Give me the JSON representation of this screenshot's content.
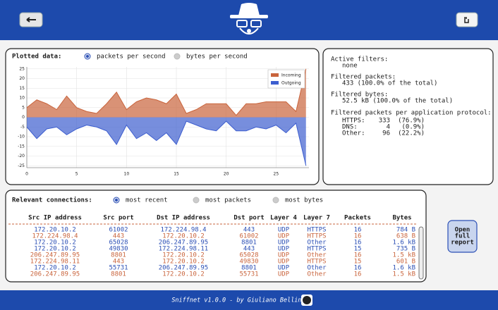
{
  "plot_panel": {
    "title": "Plotted data:",
    "options": [
      "packets per second",
      "bytes per second"
    ],
    "selected": 0,
    "chart_data": {
      "type": "area",
      "x": [
        0,
        1,
        2,
        3,
        4,
        5,
        6,
        7,
        8,
        9,
        10,
        11,
        12,
        13,
        14,
        15,
        16,
        17,
        18,
        19,
        20,
        21,
        22,
        23,
        24,
        25,
        26,
        27,
        28
      ],
      "series": [
        {
          "name": "Incoming",
          "color": "#c9643c",
          "values": [
            5,
            9,
            7,
            4,
            11,
            5,
            3,
            2,
            7,
            13,
            4,
            8,
            10,
            9,
            7,
            12,
            2,
            4,
            7,
            7,
            7,
            1,
            7,
            7,
            8,
            8,
            8,
            3,
            25
          ]
        },
        {
          "name": "Outgoing",
          "color": "#3d5ecf",
          "values": [
            -5,
            -11,
            -6,
            -5,
            -9,
            -6,
            -4,
            -5,
            -7,
            -14,
            -4,
            -11,
            -8,
            -12,
            -8,
            -14,
            -2,
            -4,
            -6,
            -7,
            -2,
            -7,
            -7,
            -5,
            -6,
            -4,
            -8,
            -3,
            -25
          ]
        }
      ],
      "xlim": [
        0,
        28.3
      ],
      "ylim": [
        -26,
        26
      ],
      "xticks": [
        0,
        5,
        10,
        15,
        20,
        25
      ],
      "yticks": [
        -25,
        -20,
        -15,
        -10,
        -5,
        0,
        5,
        10,
        15,
        20,
        25
      ],
      "grid": true,
      "legend": "top-right"
    }
  },
  "info_panel": {
    "active_filters_label": "Active filters:",
    "active_filters": "none",
    "packets_label": "Filtered packets:",
    "packets": "433 (100.0% of the total)",
    "bytes_label": "Filtered bytes:",
    "bytes": "52.5 kB (100.0% of the total)",
    "protocols_label": "Filtered packets per application protocol:",
    "protocols": [
      {
        "name": "HTTPS:",
        "count": 333,
        "percent": "(76.9%)"
      },
      {
        "name": "DNS:",
        "count": 4,
        "percent": "(0.9%)"
      },
      {
        "name": "Other:",
        "count": 96,
        "percent": "(22.2%)"
      }
    ]
  },
  "connections": {
    "title": "Relevant connections:",
    "options": [
      "most recent",
      "most packets",
      "most bytes"
    ],
    "selected": 0,
    "columns": [
      "Src IP address",
      "Src port",
      "Dst IP address",
      "Dst port",
      "Layer 4",
      "Layer 7",
      "Packets",
      "Bytes"
    ],
    "rows": [
      [
        "172.20.10.2",
        61002,
        "172.224.98.4",
        443,
        "UDP",
        "HTTPS",
        16,
        "784 B"
      ],
      [
        "172.224.98.4",
        443,
        "172.20.10.2",
        61002,
        "UDP",
        "HTTPS",
        16,
        "638 B"
      ],
      [
        "172.20.10.2",
        65028,
        "206.247.89.95",
        8801,
        "UDP",
        "Other",
        16,
        "1.6 kB"
      ],
      [
        "172.20.10.2",
        49830,
        "172.224.98.11",
        443,
        "UDP",
        "HTTPS",
        15,
        "735 B"
      ],
      [
        "206.247.89.95",
        8801,
        "172.20.10.2",
        65028,
        "UDP",
        "Other",
        16,
        "1.5 kB"
      ],
      [
        "172.224.98.11",
        443,
        "172.20.10.2",
        49830,
        "UDP",
        "HTTPS",
        15,
        "601 B"
      ],
      [
        "172.20.10.2",
        55731,
        "206.247.89.95",
        8801,
        "UDP",
        "Other",
        16,
        "1.6 kB"
      ],
      [
        "206.247.89.95",
        8801,
        "172.20.10.2",
        55731,
        "UDP",
        "Other",
        16,
        "1.5 kB"
      ]
    ],
    "row_colors": [
      "#2b4fb5",
      "#c9643c",
      "#2b4fb5",
      "#2b4fb5",
      "#c9643c",
      "#c9643c",
      "#2b4fb5",
      "#c9643c"
    ]
  },
  "report_button": {
    "lines": [
      "Open",
      "full",
      "report"
    ]
  },
  "footer": {
    "text": "Sniffnet v1.0.0 - by Giuliano Bellini"
  }
}
